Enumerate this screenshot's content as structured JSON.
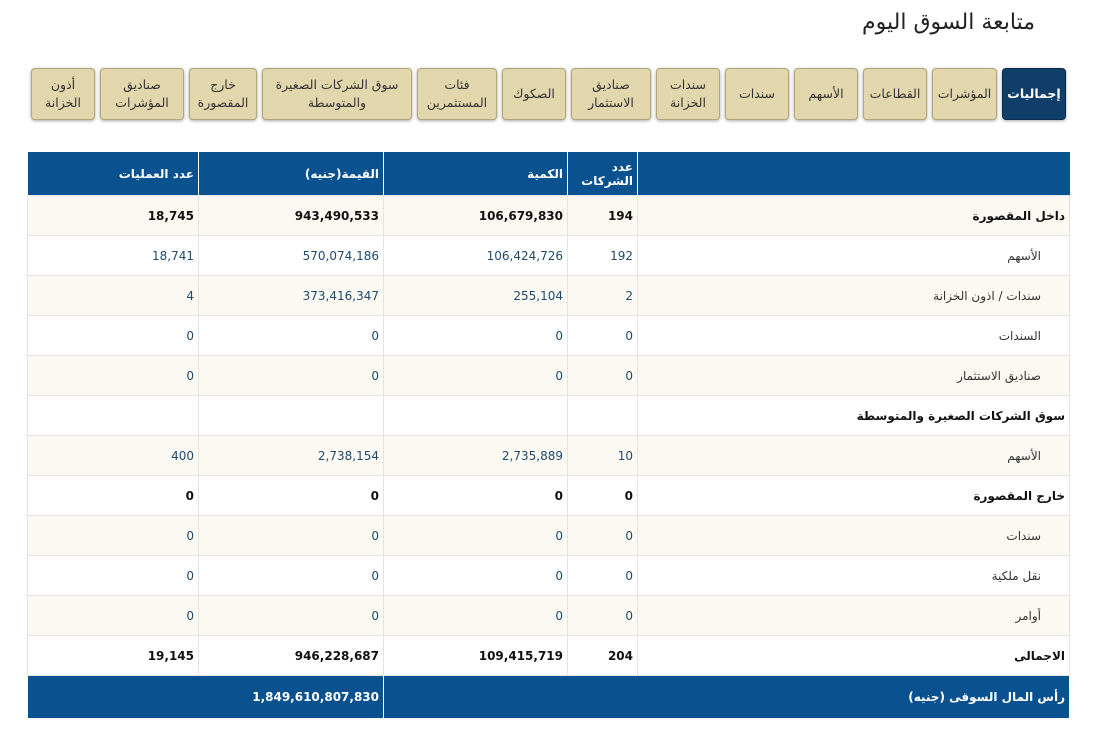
{
  "header": {
    "title": "متابعة السوق اليوم"
  },
  "tabs": [
    "إجماليات",
    "المؤشرات",
    "القطاعات",
    "الأسهم",
    "سندات",
    "سندات الخزانة",
    "صناديق الاستثمار",
    "الصكوك",
    "فئات المستثمرين",
    "سوق الشركات الصغيرة والمتوسطة",
    "خارج المقصورة",
    "صناديق المؤشرات",
    "أذون الخزانة"
  ],
  "table": {
    "columns": [
      "عدد الشركات",
      "الكمية",
      "القيمة(جنيه)",
      "عدد العمليات"
    ],
    "rows": [
      [
        "داخل المقصورة",
        "194",
        "106,679,830",
        "943,490,533",
        "18,745"
      ],
      [
        "الأسهم",
        "192",
        "106,424,726",
        "570,074,186",
        "18,741"
      ],
      [
        "سندات / اذون الخزانة",
        "2",
        "255,104",
        "373,416,347",
        "4"
      ],
      [
        "السندات",
        "0",
        "0",
        "0",
        "0"
      ],
      [
        "صناديق الاستثمار",
        "0",
        "0",
        "0",
        "0"
      ],
      [
        "سوق الشركات الصغيرة والمتوسطة"
      ],
      [
        "الأسهم",
        "10",
        "2,735,889",
        "2,738,154",
        "400"
      ],
      [
        "خارج المقصورة",
        "0",
        "0",
        "0",
        "0"
      ],
      [
        "سندات",
        "0",
        "0",
        "0",
        "0"
      ],
      [
        "نقل ملكية",
        "0",
        "0",
        "0",
        "0"
      ],
      [
        "أوامر",
        "0",
        "0",
        "0",
        "0"
      ],
      [
        "الاجمالى",
        "204",
        "109,415,719",
        "946,228,687",
        "19,145"
      ]
    ],
    "footer": [
      "رأس المال السوقى (جنيه)",
      "1,849,610,807,830"
    ]
  }
}
